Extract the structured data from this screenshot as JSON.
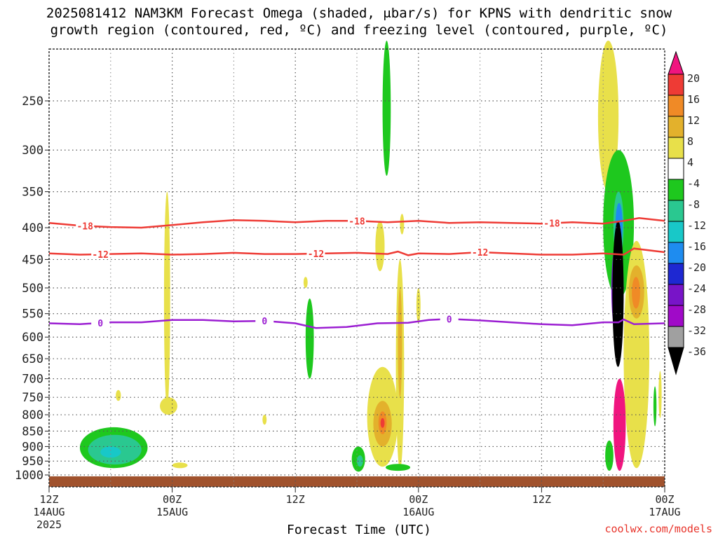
{
  "title_line1": "2025081412 NAM3KM Forecast Omega (shaded, μbar/s) for KPNS with dendritic snow",
  "title_line2": "growth region (contoured, red, ºC) and freezing level (contoured, purple, ºC)",
  "credit": "coolwx.com/models",
  "chart_data": {
    "type": "heatmap",
    "xlabel": "Forecast Time (UTC)",
    "ylabel": "",
    "x_ticks": [
      {
        "hour": 0,
        "label": "12Z",
        "sub1": "14AUG",
        "sub2": "2025"
      },
      {
        "hour": 12,
        "label": "00Z",
        "sub1": "15AUG",
        "sub2": ""
      },
      {
        "hour": 24,
        "label": "12Z",
        "sub1": "",
        "sub2": ""
      },
      {
        "hour": 36,
        "label": "00Z",
        "sub1": "16AUG",
        "sub2": ""
      },
      {
        "hour": 48,
        "label": "12Z",
        "sub1": "",
        "sub2": ""
      },
      {
        "hour": 60,
        "label": "00Z",
        "sub1": "17AUG",
        "sub2": ""
      }
    ],
    "xlim": [
      0,
      60
    ],
    "ylim_hPa": [
      1050,
      200
    ],
    "y_ticks": [
      250,
      300,
      350,
      400,
      450,
      500,
      550,
      600,
      650,
      700,
      750,
      800,
      850,
      900,
      950,
      1000
    ],
    "colorbar": {
      "labels": [
        "20",
        "16",
        "12",
        "8",
        "4",
        "-4",
        "-8",
        "-12",
        "-16",
        "-20",
        "-24",
        "-28",
        "-32",
        "-36"
      ],
      "colors": [
        "#f0157f",
        "#ee3b35",
        "#f08a26",
        "#e3b12c",
        "#e8e04a",
        "#ffffff",
        "#1ec81e",
        "#2ac890",
        "#18c8c8",
        "#1e8cf0",
        "#1e28d2",
        "#7814c8",
        "#a00ac8",
        "#a0a0a0",
        "#000000"
      ]
    },
    "contours": [
      {
        "name": "-18",
        "color": "#ee3b35",
        "label_hours": [
          3.5,
          30,
          49
        ],
        "points": [
          [
            0,
            393
          ],
          [
            3,
            397
          ],
          [
            6,
            399
          ],
          [
            9,
            400
          ],
          [
            12,
            396
          ],
          [
            15,
            392
          ],
          [
            18,
            389
          ],
          [
            21,
            390
          ],
          [
            24,
            392
          ],
          [
            27,
            390
          ],
          [
            30,
            390
          ],
          [
            33,
            392
          ],
          [
            36,
            390
          ],
          [
            39,
            393
          ],
          [
            42,
            392
          ],
          [
            45,
            393
          ],
          [
            48,
            394
          ],
          [
            51,
            392
          ],
          [
            54,
            394
          ],
          [
            56,
            390
          ],
          [
            57.5,
            386
          ],
          [
            60,
            390
          ]
        ]
      },
      {
        "name": "-12",
        "color": "#ee3b35",
        "label_hours": [
          5,
          26,
          42
        ],
        "points": [
          [
            0,
            440
          ],
          [
            3,
            442
          ],
          [
            6,
            441
          ],
          [
            9,
            440
          ],
          [
            12,
            442
          ],
          [
            15,
            441
          ],
          [
            18,
            439
          ],
          [
            21,
            441
          ],
          [
            24,
            441
          ],
          [
            27,
            440
          ],
          [
            30,
            439
          ],
          [
            33,
            441
          ],
          [
            34,
            437
          ],
          [
            35,
            443
          ],
          [
            36,
            440
          ],
          [
            39,
            441
          ],
          [
            42,
            438
          ],
          [
            45,
            440
          ],
          [
            48,
            442
          ],
          [
            51,
            442
          ],
          [
            54,
            440
          ],
          [
            56,
            442
          ],
          [
            57,
            432
          ],
          [
            60,
            438
          ]
        ]
      },
      {
        "name": "0",
        "color": "#9b1ed2",
        "label_hours": [
          5,
          21,
          39
        ],
        "points": [
          [
            0,
            570
          ],
          [
            3,
            572
          ],
          [
            6,
            568
          ],
          [
            9,
            568
          ],
          [
            12,
            563
          ],
          [
            15,
            563
          ],
          [
            18,
            566
          ],
          [
            21,
            565
          ],
          [
            24,
            570
          ],
          [
            26,
            580
          ],
          [
            29,
            578
          ],
          [
            32,
            570
          ],
          [
            35,
            569
          ],
          [
            37,
            563
          ],
          [
            39,
            561
          ],
          [
            42,
            564
          ],
          [
            45,
            568
          ],
          [
            48,
            572
          ],
          [
            51,
            574
          ],
          [
            54,
            568
          ],
          [
            55.5,
            568
          ],
          [
            56,
            562
          ],
          [
            57,
            572
          ],
          [
            60,
            570
          ]
        ]
      }
    ],
    "shaded_cells": [
      {
        "t0": 3,
        "t1": 9.6,
        "p0": 975,
        "p1": 838,
        "value": -8
      },
      {
        "t0": 3.8,
        "t1": 9,
        "p0": 962,
        "p1": 862,
        "value": -12
      },
      {
        "t0": 5,
        "t1": 7,
        "p0": 938,
        "p1": 900,
        "value": -16
      },
      {
        "t0": 11.2,
        "t1": 11.8,
        "p0": 780,
        "p1": 350,
        "value": 4
      },
      {
        "t0": 10.8,
        "t1": 12.5,
        "p0": 800,
        "p1": 750,
        "value": 4
      },
      {
        "t0": 12,
        "t1": 13.5,
        "p0": 975,
        "p1": 955,
        "value": 4
      },
      {
        "t0": 6.5,
        "t1": 7,
        "p0": 760,
        "p1": 730,
        "value": 4
      },
      {
        "t0": 20.8,
        "t1": 21.2,
        "p0": 830,
        "p1": 800,
        "value": 4
      },
      {
        "t0": 25,
        "t1": 25.8,
        "p0": 700,
        "p1": 520,
        "value": -8
      },
      {
        "t0": 29.5,
        "t1": 30.8,
        "p0": 988,
        "p1": 900,
        "value": -8
      },
      {
        "t0": 30,
        "t1": 30.6,
        "p0": 970,
        "p1": 930,
        "value": -12
      },
      {
        "t0": 31.8,
        "t1": 32.7,
        "p0": 470,
        "p1": 390,
        "value": 4
      },
      {
        "t0": 31,
        "t1": 34,
        "p0": 970,
        "p1": 670,
        "value": 4
      },
      {
        "t0": 31.6,
        "t1": 33.4,
        "p0": 900,
        "p1": 760,
        "value": 8
      },
      {
        "t0": 32.1,
        "t1": 32.9,
        "p0": 860,
        "p1": 790,
        "value": 12
      },
      {
        "t0": 32.3,
        "t1": 32.7,
        "p0": 840,
        "p1": 810,
        "value": 16
      },
      {
        "t0": 33.8,
        "t1": 34.6,
        "p0": 980,
        "p1": 450,
        "value": 4
      },
      {
        "t0": 34,
        "t1": 34.4,
        "p0": 750,
        "p1": 500,
        "value": 8
      },
      {
        "t0": 34.2,
        "t1": 34.6,
        "p0": 410,
        "p1": 380,
        "value": 4
      },
      {
        "t0": 32.5,
        "t1": 33.3,
        "p0": 330,
        "p1": 200,
        "value": -8
      },
      {
        "t0": 32.8,
        "t1": 35.2,
        "p0": 985,
        "p1": 960,
        "value": -8
      },
      {
        "t0": 35.8,
        "t1": 36.2,
        "p0": 570,
        "p1": 500,
        "value": 4
      },
      {
        "t0": 53.5,
        "t1": 55.5,
        "p0": 350,
        "p1": 200,
        "value": 4
      },
      {
        "t0": 54,
        "t1": 57,
        "p0": 520,
        "p1": 300,
        "value": -8
      },
      {
        "t0": 55,
        "t1": 56,
        "p0": 450,
        "p1": 350,
        "value": -12
      },
      {
        "t0": 55.2,
        "t1": 55.9,
        "p0": 430,
        "p1": 365,
        "value": -20
      },
      {
        "t0": 54.8,
        "t1": 56.0,
        "p0": 600,
        "p1": 420,
        "value": -28
      },
      {
        "t0": 54.9,
        "t1": 56.0,
        "p0": 670,
        "p1": 390,
        "value": -36
      },
      {
        "t0": 56,
        "t1": 58.5,
        "p0": 975,
        "p1": 420,
        "value": 4
      },
      {
        "t0": 56.5,
        "t1": 58,
        "p0": 560,
        "p1": 460,
        "value": 8
      },
      {
        "t0": 56.8,
        "t1": 57.6,
        "p0": 540,
        "p1": 480,
        "value": 12
      },
      {
        "t0": 55,
        "t1": 56.2,
        "p0": 985,
        "p1": 700,
        "value": 20
      },
      {
        "t0": 54.2,
        "t1": 55,
        "p0": 985,
        "p1": 880,
        "value": -8
      },
      {
        "t0": 58.9,
        "t1": 59.2,
        "p0": 835,
        "p1": 720,
        "value": -8
      },
      {
        "t0": 59.4,
        "t1": 59.7,
        "p0": 810,
        "p1": 680,
        "value": 4
      },
      {
        "t0": 24.8,
        "t1": 25.2,
        "p0": 500,
        "p1": 480,
        "value": 4
      }
    ]
  }
}
